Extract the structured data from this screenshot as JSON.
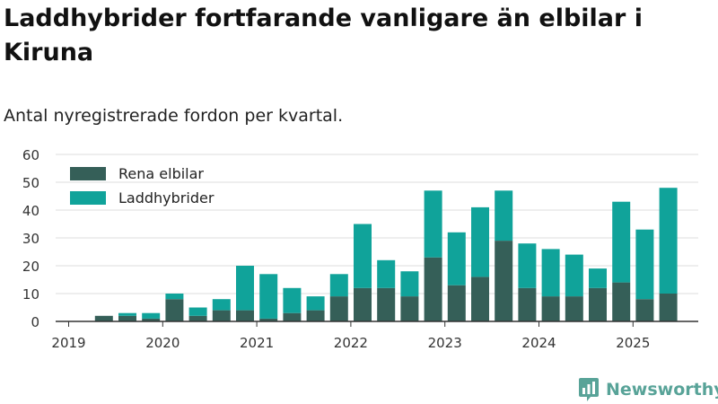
{
  "header": {
    "title": "Laddhybrider fortfarande vanligare än elbilar i Kiruna",
    "subtitle": "Antal nyregistrerade fordon per kvartal."
  },
  "brand": {
    "name": "Newsworthy",
    "icon": "bar-chart-pin-icon",
    "color": "#58a398"
  },
  "colors": {
    "elbilar": "#355f58",
    "laddhybrider": "#10a39a",
    "grid": "#dddddd",
    "axis": "#333333"
  },
  "chart_data": {
    "type": "bar",
    "stacked": true,
    "title": "Laddhybrider fortfarande vanligare än elbilar i Kiruna",
    "subtitle": "Antal nyregistrerade fordon per kvartal.",
    "xlabel": "",
    "ylabel": "",
    "ylim": [
      0,
      60
    ],
    "yticks": [
      0,
      10,
      20,
      30,
      40,
      50,
      60
    ],
    "grid": true,
    "legend": "top-left",
    "categories": [
      "2019Q1",
      "2019Q2",
      "2019Q3",
      "2019Q4",
      "2020Q1",
      "2020Q2",
      "2020Q3",
      "2020Q4",
      "2021Q1",
      "2021Q2",
      "2021Q3",
      "2021Q4",
      "2022Q1",
      "2022Q2",
      "2022Q3",
      "2022Q4",
      "2023Q1",
      "2023Q2",
      "2023Q3",
      "2023Q4",
      "2024Q1",
      "2024Q2",
      "2024Q3",
      "2024Q4",
      "2025Q1",
      "2025Q2"
    ],
    "xtick_labels": [
      "2019",
      "2020",
      "2021",
      "2022",
      "2023",
      "2024",
      "2025"
    ],
    "series": [
      {
        "name": "Rena elbilar",
        "color": "#355f58",
        "values": [
          0,
          2,
          2,
          1,
          8,
          2,
          4,
          4,
          1,
          3,
          4,
          9,
          12,
          12,
          9,
          23,
          13,
          16,
          29,
          12,
          9,
          9,
          12,
          14,
          8,
          10
        ]
      },
      {
        "name": "Laddhybrider",
        "color": "#10a39a",
        "values": [
          0,
          0,
          1,
          2,
          2,
          3,
          4,
          16,
          16,
          9,
          5,
          8,
          23,
          10,
          9,
          24,
          19,
          25,
          18,
          16,
          17,
          15,
          7,
          29,
          25,
          38
        ]
      }
    ]
  }
}
